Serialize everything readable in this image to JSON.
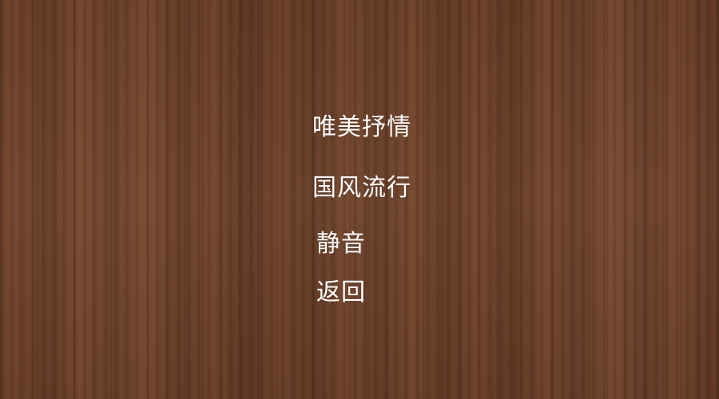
{
  "background": {
    "texture": "wood-grain",
    "base_color": "#6a4129"
  },
  "menu": {
    "items": [
      {
        "label": "唯美抒情"
      },
      {
        "label": "国风流行"
      },
      {
        "label": "静音"
      },
      {
        "label": "返回"
      }
    ],
    "text_color": "#ffffff"
  }
}
